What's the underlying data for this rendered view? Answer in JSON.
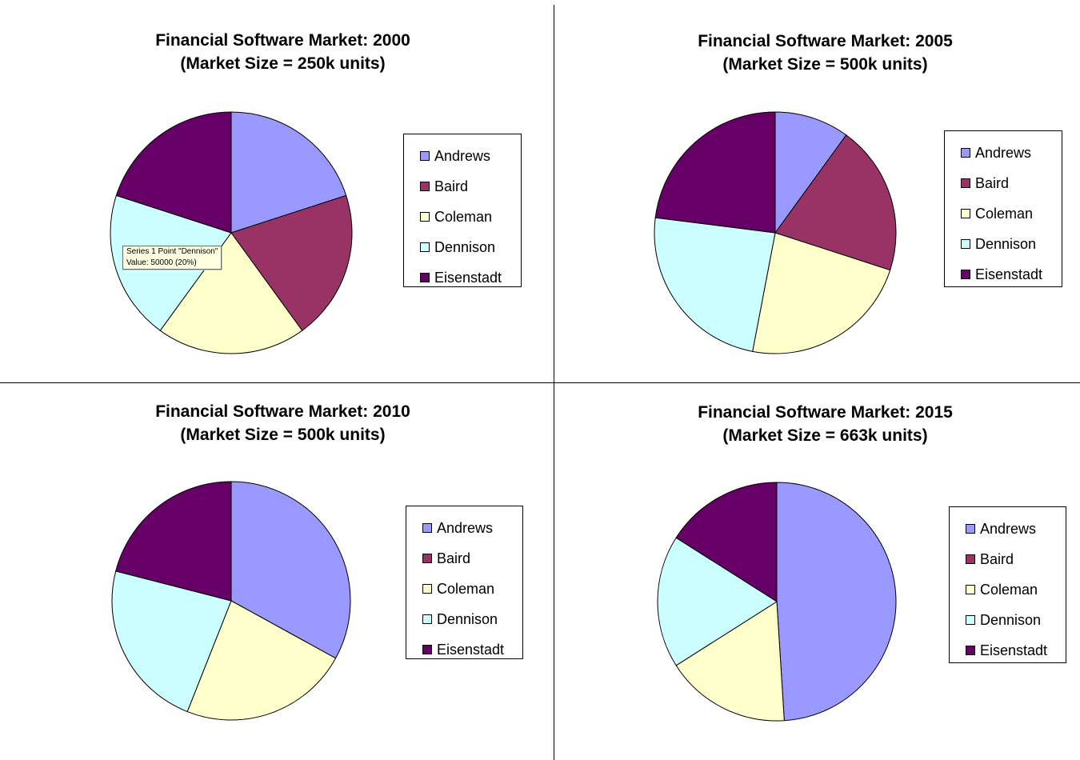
{
  "chart_data": [
    {
      "type": "pie",
      "title": "Financial Software Market: 2000",
      "subtitle": "(Market Size = 250k units)",
      "categories": [
        "Andrews",
        "Baird",
        "Coleman",
        "Dennison",
        "Eisenstadt"
      ],
      "values": [
        20,
        20,
        20,
        20,
        20
      ],
      "legend": "right"
    },
    {
      "type": "pie",
      "title": "Financial Software Market: 2005",
      "subtitle": "(Market Size = 500k units)",
      "categories": [
        "Andrews",
        "Baird",
        "Coleman",
        "Dennison",
        "Eisenstadt"
      ],
      "values": [
        10,
        20,
        23,
        24,
        23
      ],
      "legend": "right"
    },
    {
      "type": "pie",
      "title": "Financial Software Market: 2010",
      "subtitle": "(Market Size = 500k units)",
      "categories": [
        "Andrews",
        "Baird",
        "Coleman",
        "Dennison",
        "Eisenstadt"
      ],
      "values": [
        33,
        0,
        23,
        23,
        21
      ],
      "legend": "right"
    },
    {
      "type": "pie",
      "title": "Financial Software Market: 2015",
      "subtitle": "(Market Size = 663k units)",
      "categories": [
        "Andrews",
        "Baird",
        "Coleman",
        "Dennison",
        "Eisenstadt"
      ],
      "values": [
        49,
        0,
        17,
        18,
        16
      ],
      "legend": "right"
    }
  ],
  "colors": {
    "Andrews": "#9999ff",
    "Baird": "#993366",
    "Coleman": "#ffffcc",
    "Dennison": "#ccffff",
    "Eisenstadt": "#660066"
  },
  "tooltip": {
    "line1": "Series 1 Point \"Dennison\"",
    "line2": "Value: 50000 (20%)"
  }
}
